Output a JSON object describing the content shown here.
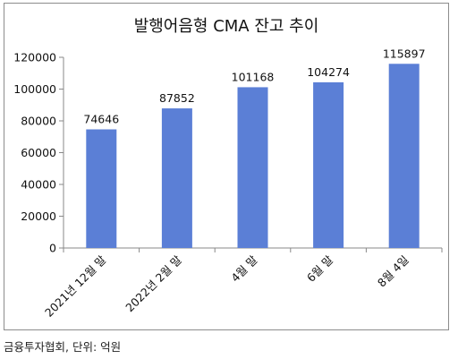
{
  "chart_data": {
    "type": "bar",
    "title": "발행어음형 CMA 잔고 추이",
    "categories": [
      "2021년 12월 말",
      "2022년 2월 말",
      "4월 말",
      "6월 말",
      "8월 4일"
    ],
    "values": [
      74646,
      87852,
      101168,
      104274,
      115897
    ],
    "data_labels": [
      "74646",
      "87852",
      "101168",
      "104274",
      "115897"
    ],
    "y_ticks": [
      "0",
      "20000",
      "40000",
      "60000",
      "80000",
      "100000",
      "120000"
    ],
    "ylim": [
      0,
      120000
    ],
    "grid": false,
    "legend": "none",
    "bar_color": "#5b7fd6",
    "xlabel": "",
    "ylabel": ""
  },
  "footer": {
    "source_note": "금융투자협회, 단위: 억원"
  }
}
